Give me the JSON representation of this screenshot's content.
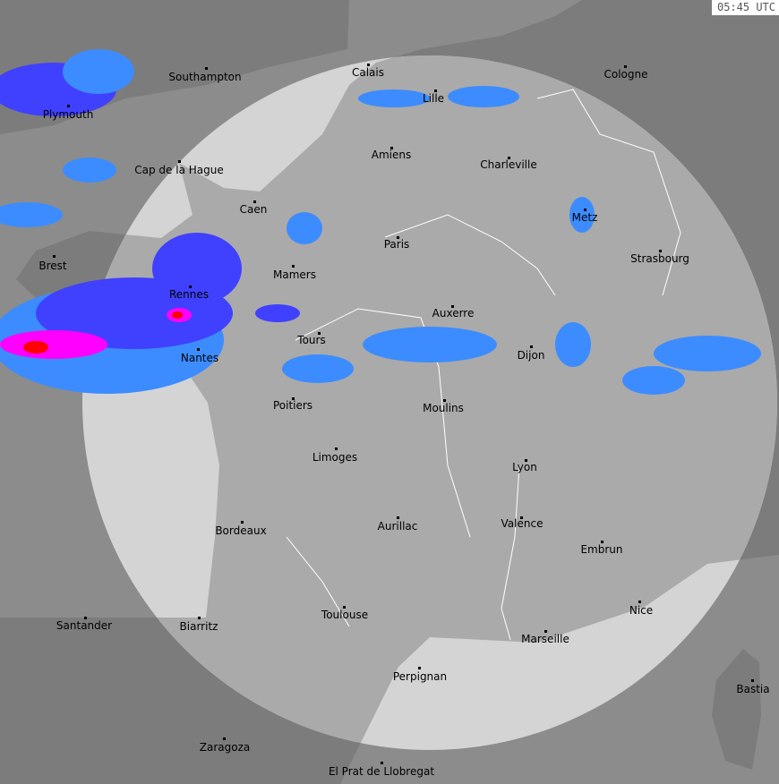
{
  "timestamp": "05:45 UTC",
  "colors": {
    "sea_in_range": "#d4d4d4",
    "land_in_range": "#aaaaaa",
    "sea_out_of_range": "#8c8c8c",
    "land_out_of_range": "#7c7c7c",
    "rain_light": "#3c8cff",
    "rain_moderate": "#4040ff",
    "rain_heavy": "#ff00ff",
    "rain_extreme": "#ff0000"
  },
  "cities": [
    "Southampton",
    "Plymouth",
    "Calais",
    "Lille",
    "Cologne",
    "Cap de la Hague",
    "Amiens",
    "Charleville",
    "Caen",
    "Metz",
    "Paris",
    "Brest",
    "Strasbourg",
    "Mamers",
    "Rennes",
    "Auxerre",
    "Tours",
    "Nantes",
    "Dijon",
    "Poitiers",
    "Moulins",
    "Limoges",
    "Lyon",
    "Bordeaux",
    "Aurillac",
    "Valence",
    "Embrun",
    "Nice",
    "Toulouse",
    "Santander",
    "Biarritz",
    "Marseille",
    "Perpignan",
    "Bastia",
    "Zaragoza",
    "El Prat de Llobregat"
  ]
}
